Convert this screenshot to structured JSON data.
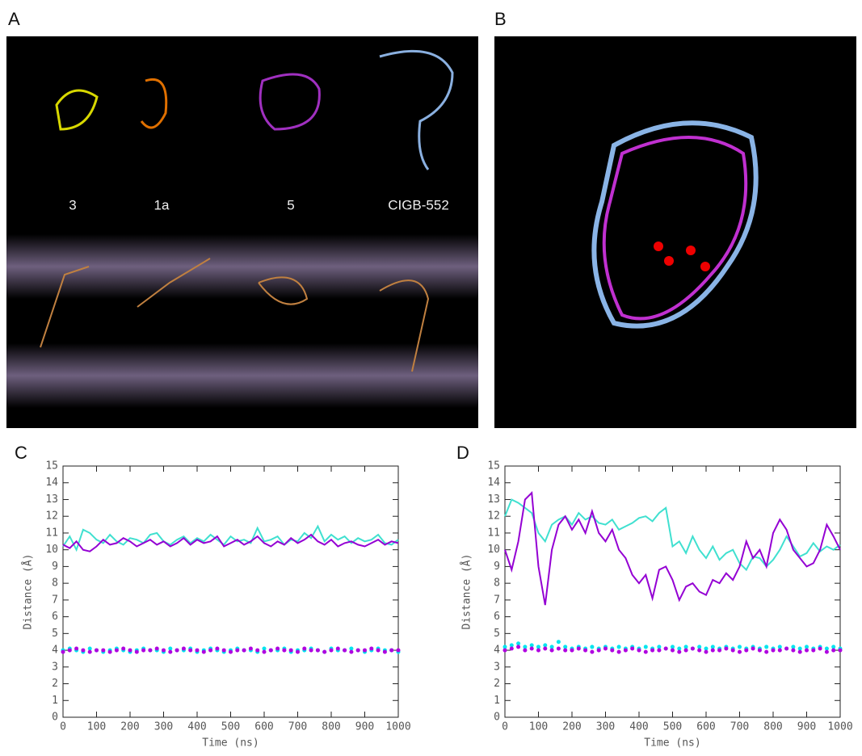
{
  "panel_labels": [
    "A",
    "B",
    "C",
    "D"
  ],
  "panel_a_labels": [
    "3",
    "1a",
    "5",
    "CIGB-552"
  ],
  "chart_data": [
    {
      "type": "line",
      "xlabel": "Time (ns)",
      "ylabel": "Distance (Å)",
      "xlim": [
        0,
        1000
      ],
      "ylim": [
        0,
        15
      ],
      "xticks": [
        0,
        100,
        200,
        300,
        400,
        500,
        600,
        700,
        800,
        900,
        1000
      ],
      "yticks": [
        0,
        1,
        2,
        3,
        4,
        5,
        6,
        7,
        8,
        9,
        10,
        11,
        12,
        13,
        14,
        15
      ],
      "x": [
        0,
        20,
        40,
        60,
        80,
        100,
        120,
        140,
        160,
        180,
        200,
        220,
        240,
        260,
        280,
        300,
        320,
        340,
        360,
        380,
        400,
        420,
        440,
        460,
        480,
        500,
        520,
        540,
        560,
        580,
        600,
        620,
        640,
        660,
        680,
        700,
        720,
        740,
        760,
        780,
        800,
        820,
        840,
        860,
        880,
        900,
        920,
        940,
        960,
        980,
        1000
      ],
      "series": [
        {
          "color": "#40e0d0",
          "style": "solid",
          "values": [
            10.2,
            10.8,
            10.0,
            11.2,
            11.0,
            10.6,
            10.4,
            10.9,
            10.5,
            10.3,
            10.7,
            10.6,
            10.4,
            10.9,
            11.0,
            10.5,
            10.3,
            10.6,
            10.8,
            10.4,
            10.7,
            10.5,
            10.9,
            10.6,
            10.3,
            10.8,
            10.5,
            10.6,
            10.4,
            11.3,
            10.5,
            10.6,
            10.8,
            10.3,
            10.6,
            10.5,
            11.0,
            10.7,
            11.4,
            10.5,
            10.9,
            10.6,
            10.8,
            10.4,
            10.7,
            10.5,
            10.6,
            10.9,
            10.4,
            10.3,
            10.6
          ]
        },
        {
          "color": "#9400d3",
          "style": "solid",
          "values": [
            10.3,
            10.1,
            10.5,
            10.0,
            9.9,
            10.2,
            10.6,
            10.3,
            10.4,
            10.7,
            10.5,
            10.2,
            10.4,
            10.6,
            10.3,
            10.5,
            10.2,
            10.4,
            10.7,
            10.3,
            10.6,
            10.4,
            10.5,
            10.8,
            10.2,
            10.4,
            10.6,
            10.3,
            10.5,
            10.8,
            10.4,
            10.2,
            10.5,
            10.3,
            10.7,
            10.4,
            10.6,
            10.9,
            10.5,
            10.3,
            10.6,
            10.2,
            10.4,
            10.5,
            10.3,
            10.2,
            10.4,
            10.6,
            10.3,
            10.5,
            10.4
          ]
        },
        {
          "color": "#00e5ee",
          "style": "dotted",
          "values": [
            4.0,
            4.1,
            4.0,
            3.9,
            4.1,
            4.0,
            3.9,
            4.0,
            4.1,
            4.0,
            3.9,
            4.0,
            4.1,
            4.0,
            4.0,
            3.9,
            4.1,
            4.0,
            4.0,
            4.1,
            3.9,
            4.0,
            4.1,
            4.0,
            3.9,
            4.0,
            4.1,
            4.0,
            4.0,
            3.9,
            4.1,
            4.0,
            4.0,
            4.1,
            3.9,
            4.0,
            4.0,
            4.1,
            4.0,
            3.9,
            4.1,
            4.0,
            4.0,
            4.1,
            4.0,
            3.9,
            4.0,
            4.1,
            4.0,
            4.0,
            3.9
          ]
        },
        {
          "color": "#b000e0",
          "style": "dotted",
          "values": [
            3.9,
            4.0,
            4.1,
            4.0,
            3.9,
            4.0,
            4.0,
            3.9,
            4.0,
            4.1,
            4.0,
            3.9,
            4.0,
            4.0,
            4.1,
            4.0,
            3.9,
            4.0,
            4.1,
            4.0,
            4.0,
            3.9,
            4.0,
            4.1,
            4.0,
            3.9,
            4.0,
            4.0,
            4.1,
            4.0,
            3.9,
            4.0,
            4.1,
            4.0,
            4.0,
            3.9,
            4.1,
            4.0,
            4.0,
            3.9,
            4.0,
            4.1,
            4.0,
            3.9,
            4.0,
            4.0,
            4.1,
            4.0,
            3.9,
            4.0,
            4.0
          ]
        }
      ]
    },
    {
      "type": "line",
      "xlabel": "Time (ns)",
      "ylabel": "Distance (Å)",
      "xlim": [
        0,
        1000
      ],
      "ylim": [
        0,
        15
      ],
      "xticks": [
        0,
        100,
        200,
        300,
        400,
        500,
        600,
        700,
        800,
        900,
        1000
      ],
      "yticks": [
        0,
        1,
        2,
        3,
        4,
        5,
        6,
        7,
        8,
        9,
        10,
        11,
        12,
        13,
        14,
        15
      ],
      "x": [
        0,
        20,
        40,
        60,
        80,
        100,
        120,
        140,
        160,
        180,
        200,
        220,
        240,
        260,
        280,
        300,
        320,
        340,
        360,
        380,
        400,
        420,
        440,
        460,
        480,
        500,
        520,
        540,
        560,
        580,
        600,
        620,
        640,
        660,
        680,
        700,
        720,
        740,
        760,
        780,
        800,
        820,
        840,
        860,
        880,
        900,
        920,
        940,
        960,
        980,
        1000
      ],
      "series": [
        {
          "color": "#40e0d0",
          "style": "solid",
          "values": [
            12.0,
            13.0,
            12.8,
            12.5,
            12.2,
            11.0,
            10.5,
            11.5,
            11.8,
            12.0,
            11.5,
            12.2,
            11.8,
            12.0,
            11.6,
            11.5,
            11.8,
            11.2,
            11.4,
            11.6,
            11.9,
            12.0,
            11.7,
            12.2,
            12.5,
            10.2,
            10.5,
            9.8,
            10.8,
            10.0,
            9.5,
            10.2,
            9.4,
            9.8,
            10.0,
            9.2,
            8.8,
            9.6,
            9.5,
            9.0,
            9.4,
            10.0,
            10.8,
            10.2,
            9.6,
            9.8,
            10.4,
            9.9,
            10.2,
            10.0,
            10.3
          ]
        },
        {
          "color": "#9400d3",
          "style": "solid",
          "values": [
            10.0,
            8.8,
            10.5,
            13.0,
            13.4,
            9.0,
            6.7,
            10.0,
            11.5,
            12.0,
            11.2,
            11.8,
            11.0,
            12.3,
            11.0,
            10.5,
            11.2,
            10.0,
            9.5,
            8.5,
            8.0,
            8.5,
            7.1,
            8.8,
            9.0,
            8.2,
            7.0,
            7.8,
            8.0,
            7.5,
            7.3,
            8.2,
            8.0,
            8.6,
            8.2,
            9.0,
            10.5,
            9.5,
            10.0,
            9.0,
            11.0,
            11.8,
            11.2,
            10.0,
            9.5,
            9.0,
            9.2,
            10.0,
            11.5,
            10.8,
            10.0
          ]
        },
        {
          "color": "#00e5ee",
          "style": "dotted",
          "values": [
            4.2,
            4.3,
            4.4,
            4.2,
            4.3,
            4.2,
            4.3,
            4.2,
            4.5,
            4.2,
            4.1,
            4.2,
            4.1,
            4.2,
            4.1,
            4.2,
            4.1,
            4.2,
            4.1,
            4.2,
            4.1,
            4.2,
            4.1,
            4.2,
            4.1,
            4.2,
            4.1,
            4.2,
            4.1,
            4.2,
            4.1,
            4.2,
            4.1,
            4.2,
            4.1,
            4.2,
            4.1,
            4.2,
            4.1,
            4.2,
            4.1,
            4.2,
            4.1,
            4.2,
            4.1,
            4.2,
            4.1,
            4.2,
            4.1,
            4.2,
            4.1
          ]
        },
        {
          "color": "#b000e0",
          "style": "dotted",
          "values": [
            4.0,
            4.1,
            4.2,
            4.0,
            4.1,
            4.0,
            4.1,
            4.0,
            4.1,
            4.0,
            4.0,
            4.1,
            4.0,
            3.9,
            4.0,
            4.1,
            4.0,
            3.9,
            4.0,
            4.1,
            4.0,
            3.9,
            4.0,
            4.0,
            4.1,
            4.0,
            3.9,
            4.0,
            4.1,
            4.0,
            3.9,
            4.0,
            4.0,
            4.1,
            4.0,
            3.9,
            4.0,
            4.1,
            4.0,
            3.9,
            4.0,
            4.0,
            4.1,
            4.0,
            3.9,
            4.0,
            4.0,
            4.1,
            3.9,
            4.0,
            4.0
          ]
        }
      ]
    }
  ]
}
